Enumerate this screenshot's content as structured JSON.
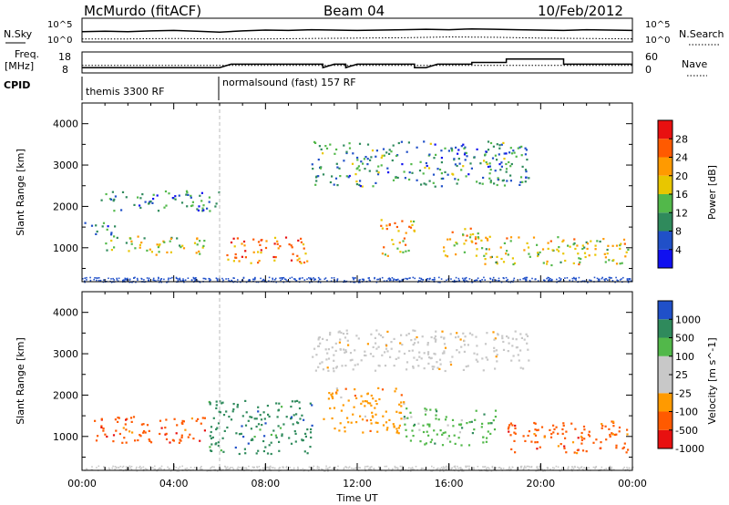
{
  "header": {
    "station": "McMurdo (fitACF)",
    "beam": "Beam 04",
    "date": "10/Feb/2012"
  },
  "side_labels": {
    "nsky": "N.Sky",
    "freq_top": "Freq.",
    "freq_unit": "[MHz]",
    "cpid": "CPID",
    "nsearch": "N.Search",
    "nave": "Nave"
  },
  "noise_axis": {
    "left_ticks": [
      "10^5",
      "10^0"
    ],
    "right_ticks": [
      "10^5",
      "10^0"
    ]
  },
  "freq_axis": {
    "left_ticks": [
      "18",
      "8"
    ],
    "right_ticks": [
      "60",
      "0"
    ]
  },
  "cpid_modes": [
    {
      "label": "themis 3300 RF",
      "start_hour": 0
    },
    {
      "label": "normalsound (fast) 157 RF",
      "start_hour": 6
    }
  ],
  "chart_data": [
    {
      "type": "line",
      "name": "noise",
      "xlim": [
        0,
        24
      ],
      "series": [
        {
          "name": "N.Sky",
          "x": [
            0,
            1,
            2,
            3,
            4,
            5,
            6,
            7,
            8,
            9,
            10,
            11,
            12,
            13,
            14,
            15,
            16,
            17,
            18,
            19,
            20,
            21,
            22,
            23,
            24
          ],
          "y": [
            2.1,
            2.2,
            2.1,
            2.3,
            2.4,
            2.2,
            2.0,
            2.3,
            2.5,
            2.4,
            2.6,
            2.5,
            2.4,
            2.5,
            2.6,
            2.7,
            2.6,
            2.8,
            2.7,
            2.6,
            2.5,
            2.4,
            2.6,
            2.5,
            2.4
          ]
        },
        {
          "name": "N.Search",
          "x": [
            0,
            2,
            4,
            6,
            8,
            10,
            12,
            14,
            16,
            18,
            20,
            22,
            24
          ],
          "y": [
            0.3,
            0.3,
            0.4,
            0.3,
            0.3,
            0.4,
            0.5,
            0.6,
            0.8,
            0.7,
            0.5,
            0.4,
            0.3
          ]
        }
      ]
    },
    {
      "type": "line",
      "name": "frequency",
      "xlim": [
        0,
        24
      ],
      "series": [
        {
          "name": "Freq.",
          "x": [
            0,
            6,
            6.5,
            10.5,
            10.5,
            11,
            11.5,
            11.5,
            12,
            14.5,
            14.5,
            15,
            15.5,
            15.5,
            17,
            17,
            18.5,
            18.5,
            21,
            21,
            24
          ],
          "y": [
            10,
            10,
            12,
            12,
            10,
            12,
            12,
            10,
            12,
            12,
            10,
            10,
            12,
            12,
            12,
            13,
            13,
            15,
            15,
            12,
            12
          ]
        },
        {
          "name": "Nave",
          "x": [
            0,
            24
          ],
          "y": [
            20,
            20
          ]
        }
      ]
    },
    {
      "type": "heatmap",
      "name": "power",
      "xlabel": "",
      "ylabel": "Slant Range [km]",
      "xlim": [
        0,
        24
      ],
      "ylim": [
        180,
        4500
      ],
      "yticks": [
        1000,
        2000,
        3000,
        4000
      ],
      "colorbar": {
        "label": "Power [dB]",
        "ticks": [
          4,
          8,
          12,
          16,
          20,
          24,
          28
        ],
        "range": [
          0,
          32
        ]
      },
      "regions": [
        {
          "t": [
            0.1,
            1.5
          ],
          "r": [
            1300,
            1650
          ],
          "v": 7
        },
        {
          "t": [
            1,
            5.5
          ],
          "r": [
            850,
            1300
          ],
          "v": 17
        },
        {
          "t": [
            6.2,
            9.8
          ],
          "r": [
            650,
            1300
          ],
          "v": 24
        },
        {
          "t": [
            13,
            14.5
          ],
          "r": [
            800,
            1700
          ],
          "v": 21
        },
        {
          "t": [
            15.5,
            17.5
          ],
          "r": [
            800,
            1500
          ],
          "v": 20
        },
        {
          "t": [
            17.5,
            23.8
          ],
          "r": [
            600,
            1300
          ],
          "v": 18
        },
        {
          "t": [
            10,
            19.5
          ],
          "r": [
            2500,
            3600
          ],
          "v": 10
        },
        {
          "t": [
            0.8,
            6
          ],
          "r": [
            1900,
            2400
          ],
          "v": 9
        }
      ]
    },
    {
      "type": "heatmap",
      "name": "velocity",
      "xlabel": "Time UT",
      "ylabel": "Slant Range [km]",
      "xlim": [
        0,
        24
      ],
      "ylim": [
        180,
        4500
      ],
      "yticks": [
        1000,
        2000,
        3000,
        4000
      ],
      "xticks": [
        "00:00",
        "04:00",
        "08:00",
        "12:00",
        "16:00",
        "20:00",
        "00:00"
      ],
      "colorbar": {
        "label": "Velocity [m s^-1]",
        "ticks": [
          1000,
          500,
          100,
          25,
          -25,
          -100,
          -500,
          -1000
        ]
      },
      "regions": [
        {
          "t": [
            0.5,
            5.5
          ],
          "r": [
            850,
            1500
          ],
          "v": -400
        },
        {
          "t": [
            5.5,
            10
          ],
          "r": [
            600,
            1900
          ],
          "v": 300
        },
        {
          "t": [
            10.5,
            14
          ],
          "r": [
            1100,
            2200
          ],
          "v": -200
        },
        {
          "t": [
            14,
            18
          ],
          "r": [
            800,
            1700
          ],
          "v": 150
        },
        {
          "t": [
            18.5,
            23.8
          ],
          "r": [
            600,
            1400
          ],
          "v": -400
        },
        {
          "t": [
            10,
            19.5
          ],
          "r": [
            2600,
            3600
          ],
          "v": 0
        }
      ]
    }
  ]
}
